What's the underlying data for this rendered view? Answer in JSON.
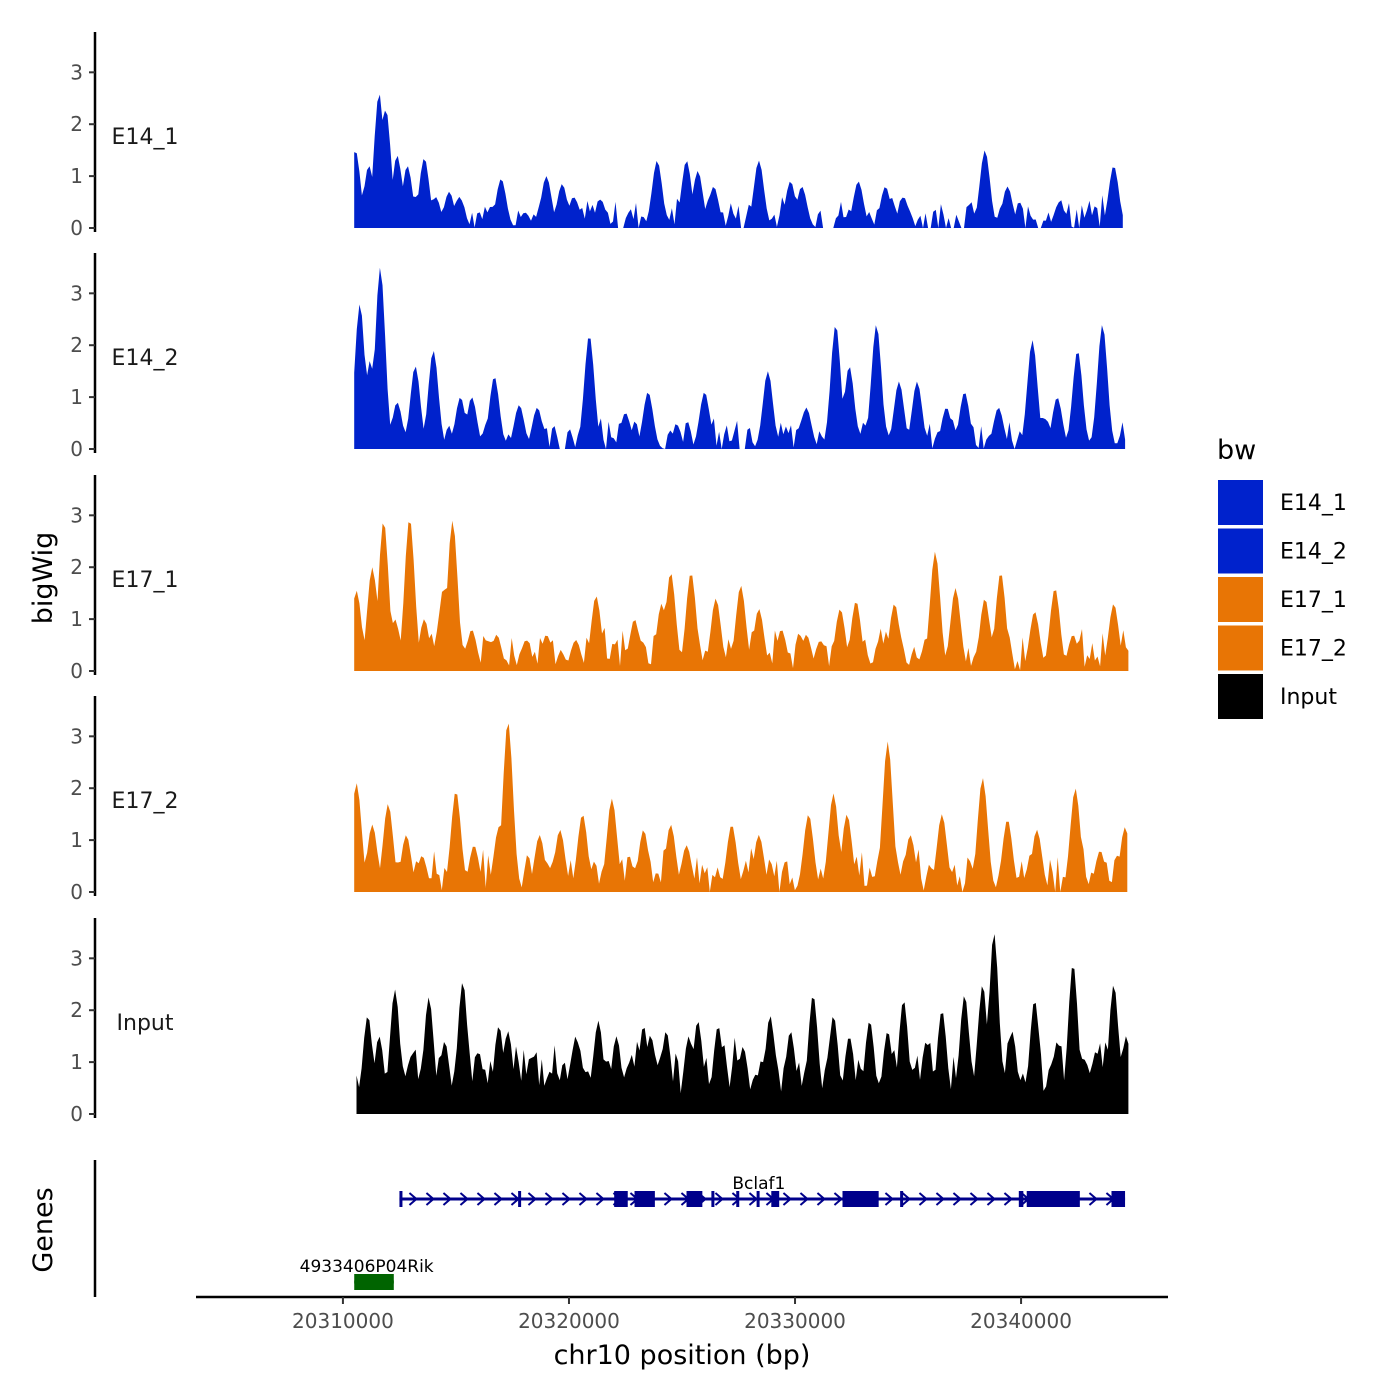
{
  "chart_data": {
    "type": "area",
    "xlabel": "chr10 position (bp)",
    "ylabel": "bigWig",
    "genes_label": "Genes",
    "xlim": [
      20303500,
      20346500
    ],
    "x_ticks": [
      20310000,
      20320000,
      20330000,
      20340000
    ],
    "x_tick_labels": [
      "20310000",
      "20320000",
      "20330000",
      "20340000"
    ],
    "ylim": [
      0,
      3.7
    ],
    "y_ticks": [
      0,
      1,
      2,
      3
    ],
    "y_tick_labels": [
      "0",
      "1",
      "2",
      "3"
    ],
    "legend": {
      "title": "bw",
      "entries": [
        {
          "name": "E14_1",
          "color": "#0022CC"
        },
        {
          "name": "E14_2",
          "color": "#0022CC"
        },
        {
          "name": "E17_1",
          "color": "#E87505"
        },
        {
          "name": "E17_2",
          "color": "#E87505"
        },
        {
          "name": "Input",
          "color": "#000000"
        }
      ]
    },
    "series": [
      {
        "name": "E14_1",
        "color": "#0022CC",
        "x_start": 20310500,
        "x_end": 20344500,
        "peaks": [
          [
            20310550,
            1.5
          ],
          [
            20311150,
            1.2
          ],
          [
            20311600,
            2.6
          ],
          [
            20311900,
            2.3
          ],
          [
            20312400,
            1.4
          ],
          [
            20312850,
            1.2
          ],
          [
            20313200,
            0.6
          ],
          [
            20313600,
            1.35
          ],
          [
            20314100,
            0.6
          ],
          [
            20314700,
            0.7
          ],
          [
            20315150,
            0.6
          ],
          [
            20316400,
            0.3
          ],
          [
            20317000,
            0.95
          ],
          [
            20318050,
            0.3
          ],
          [
            20319000,
            1.0
          ],
          [
            20319700,
            0.85
          ],
          [
            20320200,
            0.6
          ],
          [
            20321400,
            0.55
          ],
          [
            20323900,
            1.3
          ],
          [
            20325200,
            1.3
          ],
          [
            20325700,
            1.1
          ],
          [
            20326400,
            0.8
          ],
          [
            20328400,
            1.3
          ],
          [
            20329800,
            0.9
          ],
          [
            20330300,
            0.8
          ],
          [
            20332800,
            0.9
          ],
          [
            20334000,
            0.8
          ],
          [
            20334800,
            0.6
          ],
          [
            20338400,
            1.5
          ],
          [
            20339400,
            0.8
          ],
          [
            20341700,
            0.5
          ],
          [
            20344100,
            1.2
          ]
        ]
      },
      {
        "name": "E14_2",
        "color": "#0022CC",
        "x_start": 20310500,
        "x_end": 20344600,
        "peaks": [
          [
            20310750,
            2.8
          ],
          [
            20311200,
            1.7
          ],
          [
            20311650,
            3.5
          ],
          [
            20312400,
            0.9
          ],
          [
            20313200,
            1.6
          ],
          [
            20314000,
            1.9
          ],
          [
            20315200,
            1.0
          ],
          [
            20315700,
            1.0
          ],
          [
            20316700,
            1.4
          ],
          [
            20317800,
            0.85
          ],
          [
            20318600,
            0.8
          ],
          [
            20320900,
            2.2
          ],
          [
            20322500,
            0.7
          ],
          [
            20323500,
            1.1
          ],
          [
            20326000,
            1.1
          ],
          [
            20328800,
            1.5
          ],
          [
            20330500,
            0.8
          ],
          [
            20331800,
            2.4
          ],
          [
            20332400,
            1.6
          ],
          [
            20333600,
            2.4
          ],
          [
            20334600,
            1.3
          ],
          [
            20335400,
            1.3
          ],
          [
            20336700,
            0.8
          ],
          [
            20337500,
            1.1
          ],
          [
            20339000,
            0.8
          ],
          [
            20340500,
            2.1
          ],
          [
            20341600,
            1.0
          ],
          [
            20342500,
            1.9
          ],
          [
            20343600,
            2.4
          ],
          [
            20344500,
            0.2
          ]
        ]
      },
      {
        "name": "E17_1",
        "color": "#E87505",
        "x_start": 20310500,
        "x_end": 20344750,
        "peaks": [
          [
            20310600,
            1.55
          ],
          [
            20311300,
            2.0
          ],
          [
            20311800,
            2.9
          ],
          [
            20312300,
            1.0
          ],
          [
            20312950,
            2.95
          ],
          [
            20313600,
            1.0
          ],
          [
            20314450,
            1.6
          ],
          [
            20314850,
            2.9
          ],
          [
            20315700,
            0.8
          ],
          [
            20316800,
            0.7
          ],
          [
            20318100,
            0.6
          ],
          [
            20319000,
            0.7
          ],
          [
            20320300,
            0.6
          ],
          [
            20321200,
            1.45
          ],
          [
            20322900,
            1.0
          ],
          [
            20324100,
            1.3
          ],
          [
            20324500,
            1.9
          ],
          [
            20325400,
            1.9
          ],
          [
            20326500,
            1.4
          ],
          [
            20327600,
            1.65
          ],
          [
            20328400,
            1.2
          ],
          [
            20329400,
            0.8
          ],
          [
            20330500,
            0.7
          ],
          [
            20332000,
            1.2
          ],
          [
            20332700,
            1.35
          ],
          [
            20334400,
            1.3
          ],
          [
            20336200,
            2.3
          ],
          [
            20337100,
            1.6
          ],
          [
            20338400,
            1.4
          ],
          [
            20339100,
            1.9
          ],
          [
            20340600,
            1.15
          ],
          [
            20341500,
            1.6
          ],
          [
            20342300,
            0.7
          ],
          [
            20344100,
            1.3
          ],
          [
            20344700,
            0.4
          ]
        ]
      },
      {
        "name": "E17_2",
        "color": "#E87505",
        "x_start": 20310500,
        "x_end": 20344700,
        "peaks": [
          [
            20310600,
            2.1
          ],
          [
            20311300,
            1.3
          ],
          [
            20312000,
            1.7
          ],
          [
            20312800,
            1.1
          ],
          [
            20313500,
            0.7
          ],
          [
            20315000,
            1.95
          ],
          [
            20315800,
            0.9
          ],
          [
            20316900,
            1.25
          ],
          [
            20317300,
            3.3
          ],
          [
            20318700,
            1.1
          ],
          [
            20319600,
            1.2
          ],
          [
            20320600,
            1.5
          ],
          [
            20321900,
            1.8
          ],
          [
            20323300,
            1.2
          ],
          [
            20324500,
            1.3
          ],
          [
            20325200,
            0.9
          ],
          [
            20327200,
            1.3
          ],
          [
            20328400,
            1.1
          ],
          [
            20330600,
            1.5
          ],
          [
            20331700,
            1.9
          ],
          [
            20332300,
            1.5
          ],
          [
            20334100,
            2.9
          ],
          [
            20335100,
            1.1
          ],
          [
            20336500,
            1.5
          ],
          [
            20338300,
            2.2
          ],
          [
            20339400,
            1.4
          ],
          [
            20340700,
            1.2
          ],
          [
            20342400,
            2.0
          ],
          [
            20343500,
            0.8
          ],
          [
            20344600,
            1.25
          ]
        ]
      },
      {
        "name": "Input",
        "color": "#000000",
        "x_start": 20310600,
        "x_end": 20344750,
        "peaks": [
          [
            20311100,
            1.9
          ],
          [
            20311600,
            1.5
          ],
          [
            20312300,
            2.4
          ],
          [
            20313000,
            1.1
          ],
          [
            20313800,
            2.25
          ],
          [
            20314500,
            1.4
          ],
          [
            20315300,
            2.55
          ],
          [
            20316000,
            1.2
          ],
          [
            20316900,
            1.7
          ],
          [
            20317300,
            1.6
          ],
          [
            20318300,
            1.1
          ],
          [
            20319200,
            0.8
          ],
          [
            20320300,
            1.5
          ],
          [
            20321300,
            1.8
          ],
          [
            20322100,
            1.5
          ],
          [
            20323300,
            1.7
          ],
          [
            20324300,
            1.6
          ],
          [
            20325300,
            1.5
          ],
          [
            20325700,
            1.8
          ],
          [
            20326600,
            1.7
          ],
          [
            20327700,
            1.3
          ],
          [
            20328900,
            1.9
          ],
          [
            20329800,
            1.6
          ],
          [
            20330800,
            2.3
          ],
          [
            20331700,
            1.9
          ],
          [
            20332400,
            1.5
          ],
          [
            20333300,
            1.8
          ],
          [
            20334100,
            1.6
          ],
          [
            20334800,
            2.2
          ],
          [
            20335800,
            1.4
          ],
          [
            20336500,
            2.0
          ],
          [
            20337500,
            2.3
          ],
          [
            20338300,
            2.5
          ],
          [
            20338800,
            3.5
          ],
          [
            20339600,
            1.6
          ],
          [
            20340600,
            2.2
          ],
          [
            20341600,
            1.4
          ],
          [
            20342300,
            2.9
          ],
          [
            20343300,
            1.2
          ],
          [
            20344100,
            2.5
          ],
          [
            20344650,
            1.5
          ]
        ]
      }
    ],
    "genes": [
      {
        "name": "Bclaf1",
        "color": "#00008B",
        "strand": "+",
        "start": 20312500,
        "end": 20344600,
        "exons": [
          [
            20312500,
            20312600
          ],
          [
            20317750,
            20317850
          ],
          [
            20322000,
            20322600
          ],
          [
            20322900,
            20323800
          ],
          [
            20325200,
            20325900
          ],
          [
            20326300,
            20326400
          ],
          [
            20327400,
            20327500
          ],
          [
            20328300,
            20328400
          ],
          [
            20328950,
            20329300
          ],
          [
            20332100,
            20333700
          ],
          [
            20334650,
            20334750
          ],
          [
            20339900,
            20340100
          ],
          [
            20340250,
            20342600
          ],
          [
            20344000,
            20344600
          ]
        ]
      },
      {
        "name": "4933406P04Rik",
        "color": "#006400",
        "strand": "+",
        "start": 20310500,
        "end": 20312250,
        "exons": [
          [
            20310500,
            20312250
          ]
        ]
      }
    ]
  }
}
